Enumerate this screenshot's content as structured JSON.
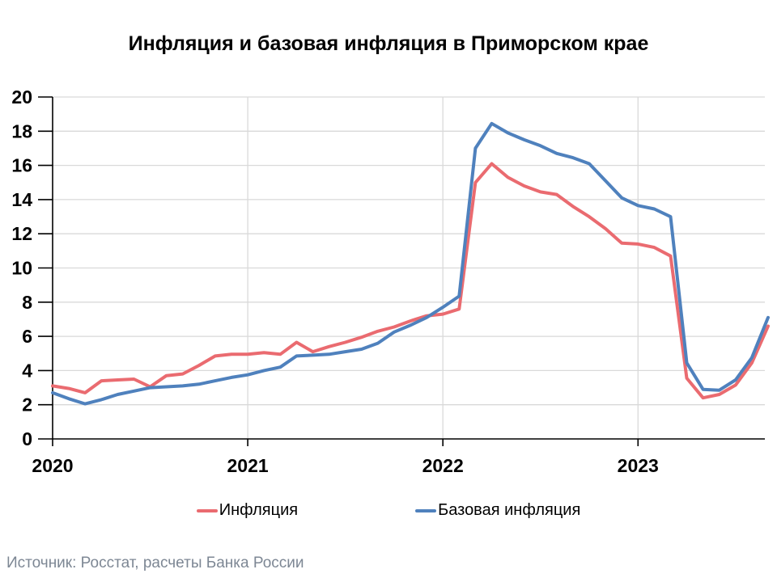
{
  "page": {
    "source": "Источник: Росстат, расчеты Банка России"
  },
  "colors": {
    "grid": "#D9D9D9",
    "axis": "#000000",
    "title_text": "#000000",
    "source_text": "#7D8794"
  },
  "chart_data": {
    "type": "line",
    "title": "Инфляция и базовая инфляция в Приморском крае",
    "xlabel": "",
    "ylabel": "",
    "ylim": [
      0,
      20
    ],
    "y_ticks": [
      0,
      2,
      4,
      6,
      8,
      10,
      12,
      14,
      16,
      18,
      20
    ],
    "x_tick_labels": [
      "2020",
      "2021",
      "2022",
      "2023"
    ],
    "x_tick_month_index": [
      0,
      12,
      24,
      36
    ],
    "grid": true,
    "legend_position": "bottom",
    "x": [
      "2020-01",
      "2020-02",
      "2020-03",
      "2020-04",
      "2020-05",
      "2020-06",
      "2020-07",
      "2020-08",
      "2020-09",
      "2020-10",
      "2020-11",
      "2020-12",
      "2021-01",
      "2021-02",
      "2021-03",
      "2021-04",
      "2021-05",
      "2021-06",
      "2021-07",
      "2021-08",
      "2021-09",
      "2021-10",
      "2021-11",
      "2021-12",
      "2022-01",
      "2022-02",
      "2022-03",
      "2022-04",
      "2022-05",
      "2022-06",
      "2022-07",
      "2022-08",
      "2022-09",
      "2022-10",
      "2022-11",
      "2022-12",
      "2023-01",
      "2023-02",
      "2023-03",
      "2023-04",
      "2023-05",
      "2023-06",
      "2023-07",
      "2023-08",
      "2023-09"
    ],
    "series": [
      {
        "name": "Инфляция",
        "color": "#EA6B70",
        "values": [
          3.1,
          2.95,
          2.7,
          3.4,
          3.45,
          3.5,
          3.05,
          3.7,
          3.8,
          4.3,
          4.85,
          4.95,
          4.95,
          5.05,
          4.95,
          5.65,
          5.1,
          5.4,
          5.65,
          5.95,
          6.3,
          6.55,
          6.9,
          7.2,
          7.3,
          7.6,
          15.0,
          16.1,
          15.3,
          14.8,
          14.45,
          14.3,
          13.6,
          13.0,
          12.3,
          11.45,
          11.4,
          11.2,
          10.7,
          3.55,
          2.4,
          2.6,
          3.15,
          4.45,
          6.6
        ]
      },
      {
        "name": "Базовая инфляция",
        "color": "#4F81BD",
        "values": [
          2.7,
          2.35,
          2.05,
          2.3,
          2.6,
          2.8,
          3.0,
          3.05,
          3.1,
          3.2,
          3.4,
          3.6,
          3.75,
          4.0,
          4.2,
          4.85,
          4.9,
          4.95,
          5.1,
          5.25,
          5.6,
          6.25,
          6.65,
          7.1,
          7.7,
          8.35,
          17.0,
          18.45,
          17.9,
          17.5,
          17.15,
          16.7,
          16.45,
          16.1,
          15.1,
          14.1,
          13.65,
          13.45,
          13.0,
          4.45,
          2.9,
          2.85,
          3.45,
          4.75,
          7.1
        ]
      }
    ]
  }
}
